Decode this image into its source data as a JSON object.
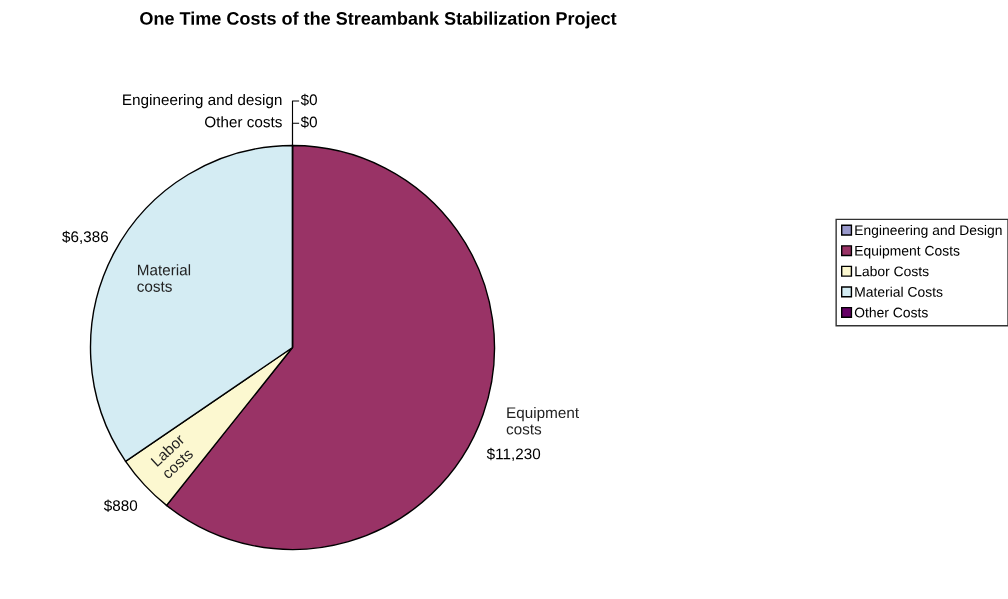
{
  "chart_data": {
    "type": "pie",
    "title": "One Time Costs of the Streambank Stabilization Project",
    "categories": [
      "Engineering and Design",
      "Equipment Costs",
      "Labor Costs",
      "Material Costs",
      "Other Costs"
    ],
    "values": [
      0,
      11230,
      880,
      6386,
      0
    ],
    "value_labels": [
      "$0",
      "$11,230",
      "$880",
      "$6,386",
      "$0"
    ],
    "colors": [
      "#9999cc",
      "#993366",
      "#fcf8d0",
      "#d4ecf3",
      "#660066"
    ],
    "annotations": [
      "Engineering and design",
      "Equipment\ncosts",
      "Labor\ncosts",
      "Material\ncosts",
      "Other costs"
    ],
    "legend": "right"
  }
}
